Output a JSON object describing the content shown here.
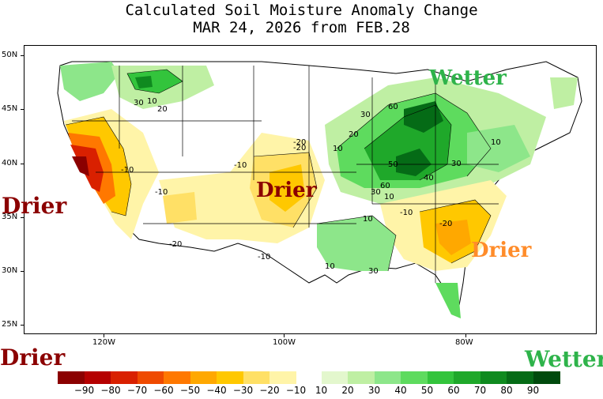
{
  "title": {
    "line1": "Calculated Soil Moisture Anomaly Change",
    "line2": "MAR 24, 2026 from FEB.28"
  },
  "map": {
    "lat_labels": [
      "50N",
      "45N",
      "40N",
      "35N",
      "30N",
      "25N"
    ],
    "lon_labels": [
      "120W",
      "100W",
      "80W"
    ],
    "contour_labels": [
      "10",
      "20",
      "30",
      "-10",
      "-20",
      "10",
      "20",
      "30",
      "60",
      "50",
      "40",
      "30",
      "10",
      "60",
      "10",
      "-10",
      "-20",
      "30",
      "10",
      "-10",
      "-20",
      "10",
      "30",
      "-10",
      "-10",
      "-20"
    ],
    "annotations": {
      "wetter_ne": "Wetter",
      "drier_west": "Drier",
      "drier_central": "Drier",
      "drier_se": "Drier"
    }
  },
  "colorbar": {
    "left_word": "Drier",
    "right_word": "Wetter",
    "labels": [
      "−90",
      "−80",
      "−70",
      "−60",
      "−50",
      "−40",
      "−30",
      "−20",
      "−10",
      "10",
      "20",
      "30",
      "40",
      "50",
      "60",
      "70",
      "80",
      "90"
    ],
    "dry_colors": [
      "#8b0000",
      "#b50000",
      "#d92000",
      "#ef4a00",
      "#ff7800",
      "#ffa800",
      "#ffc800",
      "#ffe066",
      "#fff4a8"
    ],
    "wet_colors": [
      "#e3f7cd",
      "#bfefa3",
      "#8de68a",
      "#5edb5e",
      "#33c43c",
      "#1fa82a",
      "#0f8a1f",
      "#056b16",
      "#004a0d"
    ],
    "dry_word_color": "#8b0000",
    "wet_word_color": "#2eb34a",
    "orange_word_color": "#ff8c2a"
  }
}
